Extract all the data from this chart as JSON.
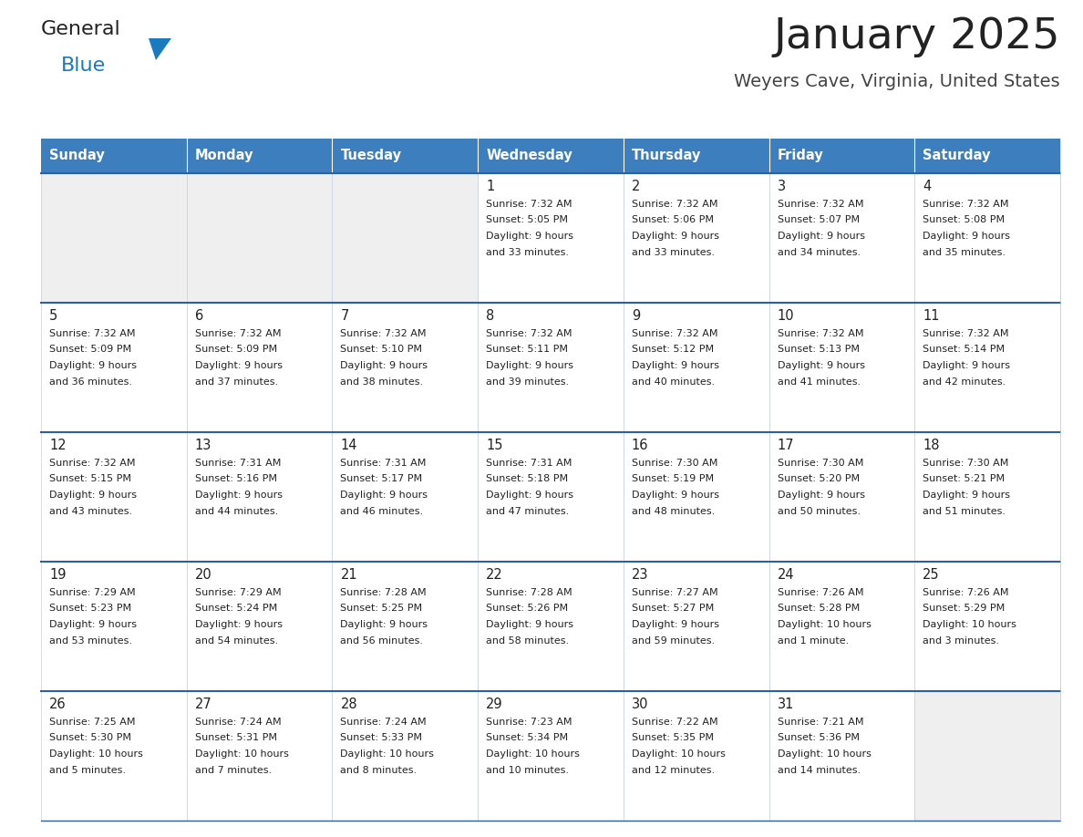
{
  "title": "January 2025",
  "subtitle": "Weyers Cave, Virginia, United States",
  "days_of_week": [
    "Sunday",
    "Monday",
    "Tuesday",
    "Wednesday",
    "Thursday",
    "Friday",
    "Saturday"
  ],
  "header_bg": "#3d7ebf",
  "header_text": "#ffffff",
  "cell_bg_light": "#efefef",
  "cell_bg_white": "#ffffff",
  "cell_border_week": "#2e5fa3",
  "cell_border_day": "#c8cfe0",
  "text_color": "#222222",
  "title_color": "#222222",
  "subtitle_color": "#444444",
  "logo_general_color": "#222222",
  "logo_blue_color": "#1a7abf",
  "weeks": [
    [
      {
        "day": null,
        "sunrise": null,
        "sunset": null,
        "daylight": null
      },
      {
        "day": null,
        "sunrise": null,
        "sunset": null,
        "daylight": null
      },
      {
        "day": null,
        "sunrise": null,
        "sunset": null,
        "daylight": null
      },
      {
        "day": 1,
        "sunrise": "7:32 AM",
        "sunset": "5:05 PM",
        "daylight": "9 hours and 33 minutes."
      },
      {
        "day": 2,
        "sunrise": "7:32 AM",
        "sunset": "5:06 PM",
        "daylight": "9 hours and 33 minutes."
      },
      {
        "day": 3,
        "sunrise": "7:32 AM",
        "sunset": "5:07 PM",
        "daylight": "9 hours and 34 minutes."
      },
      {
        "day": 4,
        "sunrise": "7:32 AM",
        "sunset": "5:08 PM",
        "daylight": "9 hours and 35 minutes."
      }
    ],
    [
      {
        "day": 5,
        "sunrise": "7:32 AM",
        "sunset": "5:09 PM",
        "daylight": "9 hours and 36 minutes."
      },
      {
        "day": 6,
        "sunrise": "7:32 AM",
        "sunset": "5:09 PM",
        "daylight": "9 hours and 37 minutes."
      },
      {
        "day": 7,
        "sunrise": "7:32 AM",
        "sunset": "5:10 PM",
        "daylight": "9 hours and 38 minutes."
      },
      {
        "day": 8,
        "sunrise": "7:32 AM",
        "sunset": "5:11 PM",
        "daylight": "9 hours and 39 minutes."
      },
      {
        "day": 9,
        "sunrise": "7:32 AM",
        "sunset": "5:12 PM",
        "daylight": "9 hours and 40 minutes."
      },
      {
        "day": 10,
        "sunrise": "7:32 AM",
        "sunset": "5:13 PM",
        "daylight": "9 hours and 41 minutes."
      },
      {
        "day": 11,
        "sunrise": "7:32 AM",
        "sunset": "5:14 PM",
        "daylight": "9 hours and 42 minutes."
      }
    ],
    [
      {
        "day": 12,
        "sunrise": "7:32 AM",
        "sunset": "5:15 PM",
        "daylight": "9 hours and 43 minutes."
      },
      {
        "day": 13,
        "sunrise": "7:31 AM",
        "sunset": "5:16 PM",
        "daylight": "9 hours and 44 minutes."
      },
      {
        "day": 14,
        "sunrise": "7:31 AM",
        "sunset": "5:17 PM",
        "daylight": "9 hours and 46 minutes."
      },
      {
        "day": 15,
        "sunrise": "7:31 AM",
        "sunset": "5:18 PM",
        "daylight": "9 hours and 47 minutes."
      },
      {
        "day": 16,
        "sunrise": "7:30 AM",
        "sunset": "5:19 PM",
        "daylight": "9 hours and 48 minutes."
      },
      {
        "day": 17,
        "sunrise": "7:30 AM",
        "sunset": "5:20 PM",
        "daylight": "9 hours and 50 minutes."
      },
      {
        "day": 18,
        "sunrise": "7:30 AM",
        "sunset": "5:21 PM",
        "daylight": "9 hours and 51 minutes."
      }
    ],
    [
      {
        "day": 19,
        "sunrise": "7:29 AM",
        "sunset": "5:23 PM",
        "daylight": "9 hours and 53 minutes."
      },
      {
        "day": 20,
        "sunrise": "7:29 AM",
        "sunset": "5:24 PM",
        "daylight": "9 hours and 54 minutes."
      },
      {
        "day": 21,
        "sunrise": "7:28 AM",
        "sunset": "5:25 PM",
        "daylight": "9 hours and 56 minutes."
      },
      {
        "day": 22,
        "sunrise": "7:28 AM",
        "sunset": "5:26 PM",
        "daylight": "9 hours and 58 minutes."
      },
      {
        "day": 23,
        "sunrise": "7:27 AM",
        "sunset": "5:27 PM",
        "daylight": "9 hours and 59 minutes."
      },
      {
        "day": 24,
        "sunrise": "7:26 AM",
        "sunset": "5:28 PM",
        "daylight": "10 hours and 1 minute."
      },
      {
        "day": 25,
        "sunrise": "7:26 AM",
        "sunset": "5:29 PM",
        "daylight": "10 hours and 3 minutes."
      }
    ],
    [
      {
        "day": 26,
        "sunrise": "7:25 AM",
        "sunset": "5:30 PM",
        "daylight": "10 hours and 5 minutes."
      },
      {
        "day": 27,
        "sunrise": "7:24 AM",
        "sunset": "5:31 PM",
        "daylight": "10 hours and 7 minutes."
      },
      {
        "day": 28,
        "sunrise": "7:24 AM",
        "sunset": "5:33 PM",
        "daylight": "10 hours and 8 minutes."
      },
      {
        "day": 29,
        "sunrise": "7:23 AM",
        "sunset": "5:34 PM",
        "daylight": "10 hours and 10 minutes."
      },
      {
        "day": 30,
        "sunrise": "7:22 AM",
        "sunset": "5:35 PM",
        "daylight": "10 hours and 12 minutes."
      },
      {
        "day": 31,
        "sunrise": "7:21 AM",
        "sunset": "5:36 PM",
        "daylight": "10 hours and 14 minutes."
      },
      {
        "day": null,
        "sunrise": null,
        "sunset": null,
        "daylight": null
      }
    ]
  ],
  "fig_width": 11.88,
  "fig_height": 9.18,
  "dpi": 100
}
